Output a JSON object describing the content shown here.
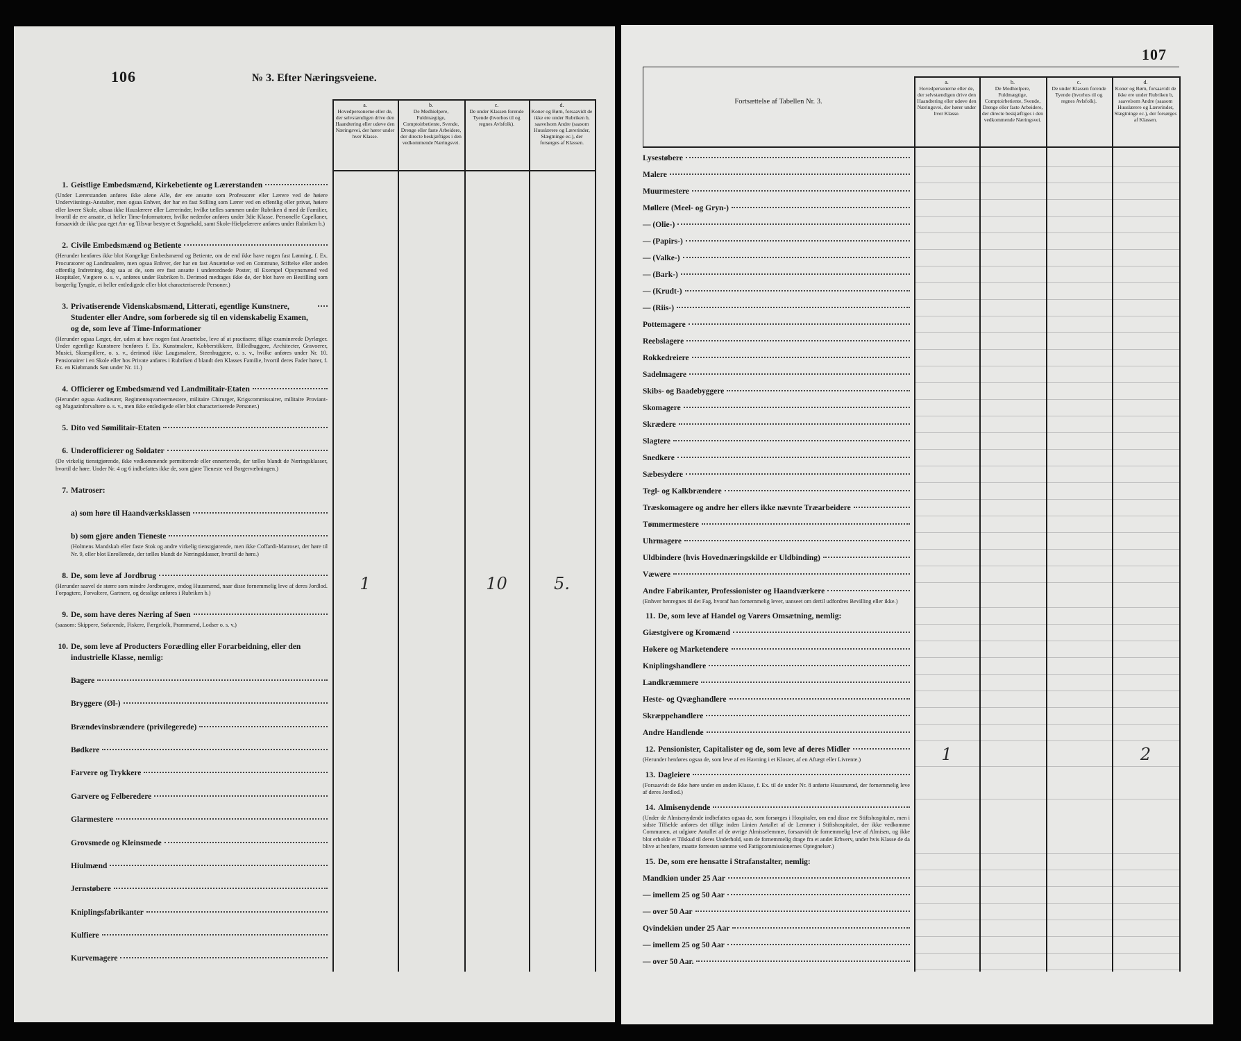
{
  "column_headers": [
    {
      "letter": "a.",
      "text": "Hovedpersonerne eller de, der selvstændigen drive den Haandtering eller udøve den Næringsvei, der hører under hver Klasse."
    },
    {
      "letter": "b.",
      "text": "De Medhielpere, Fuldmægtige, Comptoirbetiente, Svende, Drenge eller faste Arbeidere, der directe beskjæftiges i den vedkommende Næringsvei."
    },
    {
      "letter": "c.",
      "text": "De under Klassen forende Tyende (hvorhos til og regnes Avlsfolk)."
    },
    {
      "letter": "d.",
      "text": "Koner og Børn, forsaavidt de ikke ere under Rubriken b, saavelsom Andre (saasom Huuslærere og Lærerinder, Slægtninge ec.), der forsørges af Klassen."
    }
  ],
  "left_page": {
    "page_number": "106",
    "heading": "№ 3. Efter Næringsveiene.",
    "rows": [
      {
        "number": "1.",
        "label": "Geistlige Embedsmænd, Kirkebetiente og Lærerstanden",
        "note": "(Under Lærerstanden anføres ikke alene Alle, der ere ansatte som Professorer eller Lærere ved de høiere Underviisnings-Anstalter, men ogsaa Enhver, der har en fast Stilling som Lærer ved en offentlig eller privat, høiere eller lavere Skole, altsaa ikke Huuslærere eller Lærerinder, hvilke tælles sammen under Rubriken d med de Familier, hvortil de ere ansatte, ei heller Time-Informatorer, hvilke nedenfor anføres under 3die Klasse. Personelle Capellaner, forsaavidt de ikke paa eget An- og Tilsvar bestyre et Sognekald, samt Skole-Hielpelærere anføres under Rubriken b.)"
      },
      {
        "number": "2.",
        "label": "Civile Embedsmænd og Betiente",
        "note": "(Herunder henføres ikke blot Kongelige Embedsmænd og Betiente, om de end ikke have nogen fast Lønning, f. Ex. Procuratorer og Landmaalere, men ogsaa Enhver, der har en fast Ansættelse ved en Commune, Stiftelse eller anden offentlig Indretning, dog saa at de, som ere fast ansatte i underordnede Poster, til Exempel Opsynsmænd ved Hospitaler, Vægtere o. s. v., anføres under Rubriken b. Derimod medtages ikke de, der blot have en Bestilling som borgerlig Tyngde, ei heller entledigede eller blot characteriserede Personer.)"
      },
      {
        "number": "3.",
        "label": "Privatiserende Videnskabsmænd, Litterati, egentlige Kunstnere, Studenter eller Andre, som forberede sig til en videnskabelig Examen, og de, som leve af Time-Informationer",
        "note": "(Herunder ogsaa Læger, der, uden at have nogen fast Ansættelse, leve af at practisere; tillige examinerede Dyrlæger. Under egentlige Kunstnere henføres f. Ex. Kunstmalere, Kobberstikkere, Billedhuggere, Architecter, Gravoerer, Musici, Skuespillere, o. s. v., derimod ikke Laugsmalere, Steenhuggere, o. s. v., hvilke anføres under Nr. 10. Pensionairer i en Skole eller hos Private anføres i Rubriken d blandt den Klasses Familie, hvortil deres Fader hører, f. Ex. en Kiøbmands Søn under Nr. 11.)"
      },
      {
        "number": "4.",
        "label": "Officierer og Embedsmænd ved Landmilitair-Etaten",
        "note": "(Herunder ogsaa Auditeurer, Regimentsqvarteermestere, militaire Chirurger, Krigscommissairer, militaire Proviant- og Magazinforvaltere o. s. v., men ikke entledigede eller blot characteriserede Personer.)"
      },
      {
        "number": "5.",
        "label": "Dito ved Sømilitair-Etaten"
      },
      {
        "number": "6.",
        "label": "Underofficierer og Soldater",
        "note": "(De virkelig tienstgjørende, ikke vedkommende permitterede eller ennerterede, der tælles blandt de Næringsklasser, hvortil de høre. Under Nr. 4 og 6 indbefattes ikke de, som gjøre Tieneste ved Borgervæbningen.)"
      },
      {
        "number": "7.",
        "label": "Matroser:",
        "items": [
          {
            "label": "a) som høre til Haandværksklassen"
          },
          {
            "label": "b) som gjøre anden Tieneste",
            "note": "(Holmens Mandskab eller faste Stok og andre virkelig tienstgjørende, men ikke Coffardi-Matroser, der høre til Nr. 9, eller blot Enrollerede, der tælles blandt de Næringsklasser, hvortil de høre.)"
          }
        ]
      },
      {
        "number": "8.",
        "label": "De, som leve af Jordbrug",
        "note": "(Herunder saavel de større som mindre Jordbrugere, endog Huusmænd, naar disse fornemmelig leve af deres Jordlod. Forpagtere, Forvaltere, Gartnere, og desslige anføres i Rubriken b.)",
        "entries": {
          "a": "1",
          "c": "10",
          "d": "5."
        }
      },
      {
        "number": "9.",
        "label": "De, som have deres Næring af Søen",
        "note": "(saasom: Skippere, Søfarende, Fiskere, Færgefolk, Prammænd, Lodser o. s. v.)"
      },
      {
        "number": "10.",
        "label": "De, som leve af Producters Forædling eller Forarbeidning, eller den industrielle Klasse, nemlig:",
        "items": [
          {
            "label": "Bagere"
          },
          {
            "label": "Bryggere (Øl-)"
          },
          {
            "label": "Brændevinsbrændere (privilegerede)"
          },
          {
            "label": "Bødkere"
          },
          {
            "label": "Farvere og Trykkere"
          },
          {
            "label": "Garvere og Felberedere"
          },
          {
            "label": "Glarmestere"
          },
          {
            "label": "Grovsmede og Kleinsmede"
          },
          {
            "label": "Hiulmænd"
          },
          {
            "label": "Jernstøbere"
          },
          {
            "label": "Kniplingsfabrikanter"
          },
          {
            "label": "Kulfiere"
          },
          {
            "label": "Kurvemagere"
          }
        ]
      }
    ]
  },
  "right_page": {
    "page_number": "107",
    "heading": "Fortsættelse af Tabellen Nr. 3.",
    "rows": [
      {
        "label": "Lysestøbere"
      },
      {
        "label": "Malere"
      },
      {
        "label": "Muurmestere"
      },
      {
        "label": "Møllere (Meel- og Gryn-)"
      },
      {
        "label": "— (Olie-)"
      },
      {
        "label": "— (Papirs-)"
      },
      {
        "label": "— (Valke-)"
      },
      {
        "label": "— (Bark-)"
      },
      {
        "label": "— (Krudt-)"
      },
      {
        "label": "— (Riis-)"
      },
      {
        "label": "Pottemagere"
      },
      {
        "label": "Reebslagere"
      },
      {
        "label": "Rokkedreiere"
      },
      {
        "label": "Sadelmagere"
      },
      {
        "label": "Skibs- og Baadebyggere"
      },
      {
        "label": "Skomagere"
      },
      {
        "label": "Skrædere"
      },
      {
        "label": "Slagtere"
      },
      {
        "label": "Snedkere"
      },
      {
        "label": "Sæbesydere"
      },
      {
        "label": "Tegl- og Kalkbrændere"
      },
      {
        "label": "Træskomagere og andre her ellers ikke nævnte Træarbeidere"
      },
      {
        "label": "Tømmermestere"
      },
      {
        "label": "Uhrmagere"
      },
      {
        "label": "Uldbindere (hvis Hovednæringskilde er Uldbinding)"
      },
      {
        "label": "Væwere"
      },
      {
        "label": "Andre Fabrikanter, Professionister og Haandværkere",
        "note": "(Enhver henregnes til det Fag, hvoraf han fornemmelig lever, uanseet om dertil udfordres Bevilling eller ikke.)"
      },
      {
        "number": "11.",
        "label": "De, som leve af Handel og Varers Omsætning, nemlig:",
        "items": [
          {
            "label": "Giæstgivere og Kromænd"
          },
          {
            "label": "Høkere og Marketendere"
          },
          {
            "label": "Kniplingshandlere"
          },
          {
            "label": "Landkræmmere"
          },
          {
            "label": "Heste- og Qvæghandlere"
          },
          {
            "label": "Skræppehandlere"
          },
          {
            "label": "Andre Handlende"
          }
        ]
      },
      {
        "number": "12.",
        "label": "Pensionister, Capitalister og de, som leve af deres Midler",
        "note": "(Herunder henføres ogsaa de, som leve af en Havning i et Kloster, af en Aftægt eller Livrente.)",
        "entries": {
          "a": "1",
          "d": "2"
        }
      },
      {
        "number": "13.",
        "label": "Dagleiere",
        "note": "(Forsaavidt de ikke høre under en anden Klasse, f. Ex. til de under Nr. 8 anførte Huusmænd, der fornemmelig leve af deres Jordlod.)"
      },
      {
        "number": "14.",
        "label": "Almisenydende",
        "note": "(Under de Almisenydende indbefattes ogsaa de, som forsørges i Hospitaler, om end disse ere Stiftshospitaler, men i sidste Tilfælde anføres det tillige inden Linien Antallet af de Lemmer i Stiftshospitalet, der ikke vedkomme Communen, at udgiøre Antallet af de øvrige Almisselemmer, forsaavidt de fornemmelig leve af Almisen, og ikke blot erholde et Tilskud til deres Underhold, som de fornemmelig drage fra et andet Erhverv, under hvis Klasse de da blive at henføre, maatte forresten sømme ved Fattigcommissionernes Optegnelser.)"
      },
      {
        "number": "15.",
        "label": "De, som ere hensatte i Strafanstalter, nemlig:",
        "items": [
          {
            "label": "Mandkiøn under 25 Aar"
          },
          {
            "label": "— imellem 25 og 50 Aar"
          },
          {
            "label": "— over 50 Aar"
          },
          {
            "label": "Qvindekiøn under 25 Aar"
          },
          {
            "label": "— imellem 25 og 50 Aar"
          },
          {
            "label": "— over 50 Aar."
          }
        ]
      }
    ]
  }
}
